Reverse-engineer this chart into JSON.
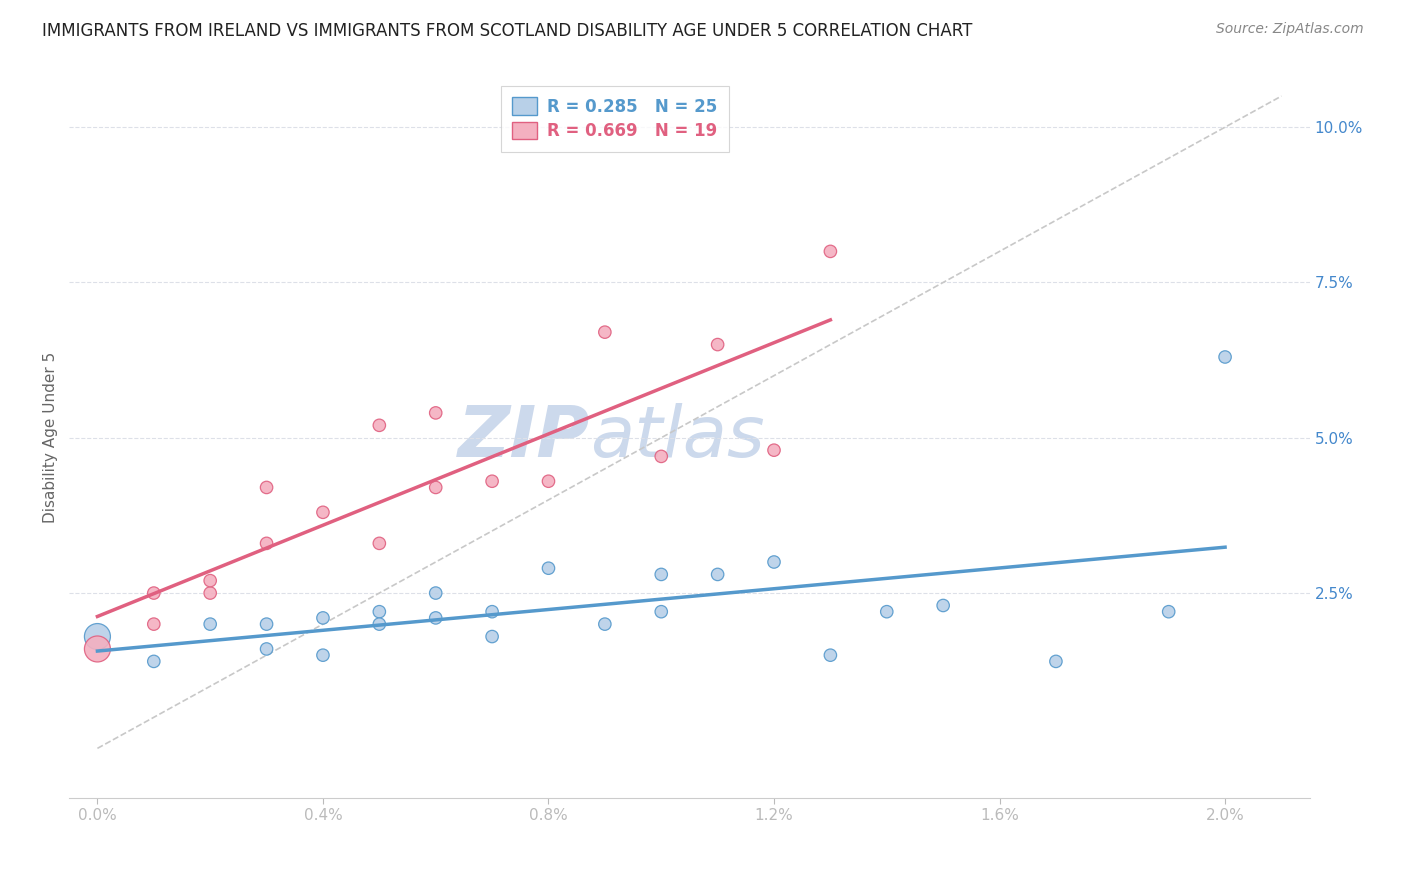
{
  "title": "IMMIGRANTS FROM IRELAND VS IMMIGRANTS FROM SCOTLAND DISABILITY AGE UNDER 5 CORRELATION CHART",
  "source": "Source: ZipAtlas.com",
  "ylabel": "Disability Age Under 5",
  "watermark": "ZIPatlas",
  "ireland_x": [
    0.0,
    0.001,
    0.002,
    0.003,
    0.003,
    0.004,
    0.004,
    0.005,
    0.005,
    0.006,
    0.006,
    0.007,
    0.007,
    0.008,
    0.009,
    0.01,
    0.01,
    0.011,
    0.012,
    0.013,
    0.014,
    0.015,
    0.017,
    0.019,
    0.02
  ],
  "ireland_y": [
    0.018,
    0.014,
    0.02,
    0.02,
    0.016,
    0.021,
    0.015,
    0.022,
    0.02,
    0.021,
    0.025,
    0.022,
    0.018,
    0.029,
    0.02,
    0.022,
    0.028,
    0.028,
    0.03,
    0.015,
    0.022,
    0.023,
    0.014,
    0.022,
    0.063
  ],
  "ireland_sizes": [
    350,
    80,
    80,
    80,
    80,
    80,
    80,
    80,
    80,
    80,
    80,
    80,
    80,
    80,
    80,
    80,
    80,
    80,
    80,
    80,
    80,
    80,
    80,
    80,
    80
  ],
  "scotland_x": [
    0.0,
    0.001,
    0.001,
    0.002,
    0.002,
    0.003,
    0.003,
    0.004,
    0.005,
    0.005,
    0.006,
    0.006,
    0.007,
    0.008,
    0.009,
    0.01,
    0.011,
    0.012,
    0.013
  ],
  "scotland_y": [
    0.016,
    0.02,
    0.025,
    0.025,
    0.027,
    0.033,
    0.042,
    0.038,
    0.033,
    0.052,
    0.042,
    0.054,
    0.043,
    0.043,
    0.067,
    0.047,
    0.065,
    0.048,
    0.08
  ],
  "scotland_sizes": [
    350,
    80,
    80,
    80,
    80,
    80,
    80,
    80,
    80,
    80,
    80,
    80,
    80,
    80,
    80,
    80,
    80,
    80,
    80
  ],
  "ireland_color": "#b8d0e8",
  "scotland_color": "#f4b0c0",
  "ireland_edge_color": "#5599cc",
  "scotland_edge_color": "#e06080",
  "diagonal_color": "#c8c8c8",
  "ireland_R": 0.285,
  "ireland_N": 25,
  "scotland_R": 0.669,
  "scotland_N": 19,
  "xlim": [
    -0.0005,
    0.0215
  ],
  "ylim": [
    -0.008,
    0.108
  ],
  "xticks": [
    0.0,
    0.004,
    0.008,
    0.012,
    0.016,
    0.02
  ],
  "xtick_labels": [
    "0.0%",
    "0.4%",
    "0.8%",
    "1.2%",
    "1.6%",
    "2.0%"
  ],
  "yticks_right": [
    0.025,
    0.05,
    0.075,
    0.1
  ],
  "ytick_labels_right": [
    "2.5%",
    "5.0%",
    "7.5%",
    "10.0%"
  ],
  "title_fontsize": 12,
  "source_fontsize": 10,
  "label_fontsize": 11,
  "tick_fontsize": 11,
  "legend_fontsize": 12,
  "watermark_fontsize": 52,
  "watermark_color": "#ccd9ec",
  "background_color": "#ffffff",
  "grid_color": "#dde0e8"
}
